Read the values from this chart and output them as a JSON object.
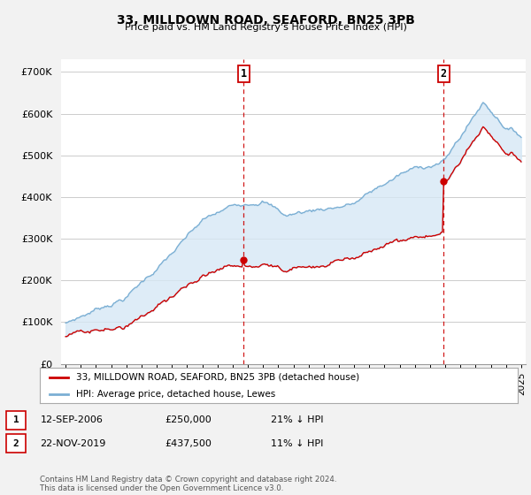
{
  "title": "33, MILLDOWN ROAD, SEAFORD, BN25 3PB",
  "subtitle": "Price paid vs. HM Land Registry's House Price Index (HPI)",
  "ylabel_ticks": [
    "£0",
    "£100K",
    "£200K",
    "£300K",
    "£400K",
    "£500K",
    "£600K",
    "£700K"
  ],
  "ytick_values": [
    0,
    100000,
    200000,
    300000,
    400000,
    500000,
    600000,
    700000
  ],
  "ylim": [
    0,
    730000
  ],
  "xlim_start": 1994.7,
  "xlim_end": 2025.3,
  "line1_color": "#cc0000",
  "line2_color": "#7bafd4",
  "fill_color": "#d6e8f5",
  "purchase1_x": 2006.71,
  "purchase1_y": 250000,
  "purchase2_x": 2019.9,
  "purchase2_y": 437500,
  "vline_color": "#cc0000",
  "annotation1_label": "1",
  "annotation2_label": "2",
  "legend_line1": "33, MILLDOWN ROAD, SEAFORD, BN25 3PB (detached house)",
  "legend_line2": "HPI: Average price, detached house, Lewes",
  "table_row1": [
    "1",
    "12-SEP-2006",
    "£250,000",
    "21% ↓ HPI"
  ],
  "table_row2": [
    "2",
    "22-NOV-2019",
    "£437,500",
    "11% ↓ HPI"
  ],
  "footer": "Contains HM Land Registry data © Crown copyright and database right 2024.\nThis data is licensed under the Open Government Licence v3.0.",
  "bg_color": "#f2f2f2",
  "plot_bg_color": "#ffffff",
  "grid_color": "#cccccc"
}
